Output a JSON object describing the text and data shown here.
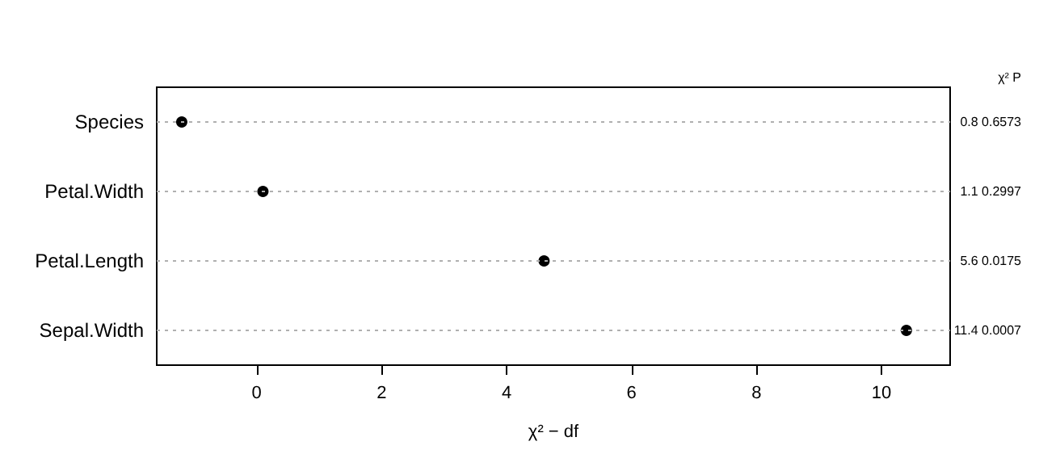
{
  "chart_data": {
    "type": "scatter",
    "orientation": "horizontal",
    "categories": [
      "Species",
      "Petal.Width",
      "Petal.Length",
      "Sepal.Width"
    ],
    "values": [
      -1.2,
      0.1,
      4.6,
      10.4
    ],
    "color": "#000000",
    "value_labels": [
      "0.8 0.6573",
      "1.1 0.2997",
      "5.6 0.0175",
      "11.4 0.0007"
    ],
    "annotations": [
      "χ² P"
    ],
    "xlabel": "χ² − df",
    "xlim": [
      -1.6,
      11.1
    ],
    "xticks": [
      0,
      2,
      4,
      6,
      8,
      10
    ],
    "grid": "y",
    "marker": "circle"
  }
}
